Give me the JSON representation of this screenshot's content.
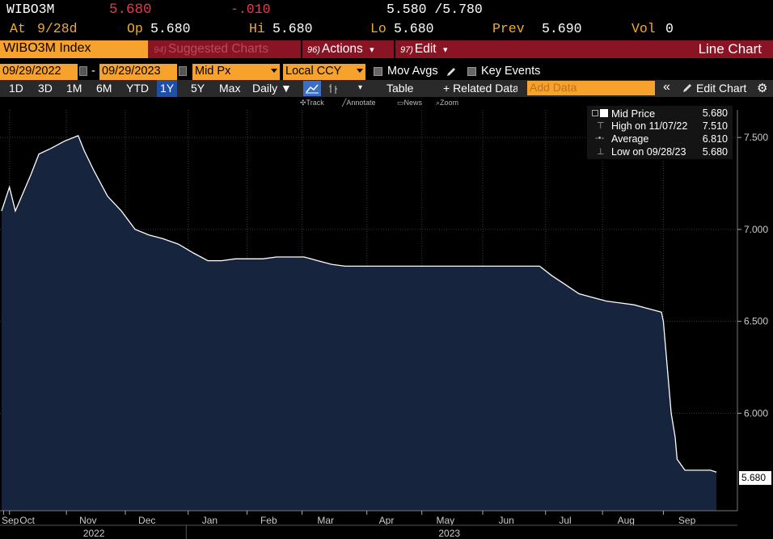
{
  "quote": {
    "ticker": "WIBO3M",
    "last": "5.680",
    "change": "-.010",
    "bid_ask": "5.580 /5.780",
    "at_label": "At",
    "at_value": "9/28d",
    "open_label": "Op",
    "open_value": "5.680",
    "high_label": "Hi",
    "high_value": "5.680",
    "low_label": "Lo",
    "low_value": "5.680",
    "prev_label": "Prev",
    "prev_value": "5.690",
    "vol_label": "Vol",
    "vol_value": "0"
  },
  "function_bar": {
    "security": "WIBO3M Index",
    "suggested_num": "94)",
    "suggested_label": "Suggested Charts",
    "actions_num": "96)",
    "actions_label": "Actions",
    "edit_num": "97)",
    "edit_label": "Edit",
    "dropdown_glyph": "▾",
    "title": "Line Chart"
  },
  "controls": {
    "start_date": "09/29/2022",
    "separator": "-",
    "end_date": "09/29/2023",
    "field": "Mid Px",
    "currency": "Local CCY",
    "mov_avgs": "Mov Avgs",
    "key_events": "Key Events"
  },
  "range_bar": {
    "ranges": [
      "1D",
      "3D",
      "1M",
      "6M",
      "YTD",
      "1Y",
      "5Y",
      "Max"
    ],
    "selected": "1Y",
    "frequency": "Daily ▼",
    "table": "Table",
    "related": "+ Related Data",
    "add_data_placeholder": "Add Data",
    "collapse": "«",
    "edit_chart": "Edit Chart",
    "gear": "⚙"
  },
  "chart_tools": {
    "track": "Track",
    "annotate": "Annotate",
    "news": "News",
    "zoom": "Zoom"
  },
  "legend": {
    "mid_price_label": "Mid Price",
    "mid_price_value": "5.680",
    "high_label": "High on 11/07/22",
    "high_value": "7.510",
    "average_label": "Average",
    "average_value": "6.810",
    "low_label": "Low on 09/28/23",
    "low_value": "5.680"
  },
  "last_value_tag": "5.680",
  "colors": {
    "accent_orange": "#f7a22d",
    "quote_red": "#e8384f",
    "bar_red": "#8a1424",
    "area_fill": "#16243e",
    "line": "#ffffff"
  },
  "chart_data": {
    "type": "area",
    "series": [
      {
        "name": "Mid Price",
        "x": [
          "2022-09-29",
          "2022-10-03",
          "2022-10-06",
          "2022-10-10",
          "2022-10-14",
          "2022-10-18",
          "2022-10-24",
          "2022-10-31",
          "2022-11-07",
          "2022-11-10",
          "2022-11-15",
          "2022-11-22",
          "2022-11-29",
          "2022-12-06",
          "2022-12-13",
          "2022-12-20",
          "2022-12-28",
          "2023-01-05",
          "2023-01-12",
          "2023-01-19",
          "2023-01-26",
          "2023-02-02",
          "2023-02-09",
          "2023-02-16",
          "2023-02-23",
          "2023-03-02",
          "2023-03-09",
          "2023-03-16",
          "2023-03-23",
          "2023-03-30",
          "2023-04-13",
          "2023-04-27",
          "2023-05-11",
          "2023-05-25",
          "2023-06-08",
          "2023-06-22",
          "2023-06-30",
          "2023-07-06",
          "2023-07-13",
          "2023-07-20",
          "2023-07-27",
          "2023-08-03",
          "2023-08-10",
          "2023-08-17",
          "2023-08-24",
          "2023-08-31",
          "2023-09-01",
          "2023-09-05",
          "2023-09-07",
          "2023-09-08",
          "2023-09-12",
          "2023-09-15",
          "2023-09-20",
          "2023-09-25",
          "2023-09-28"
        ],
        "y": [
          7.1,
          7.23,
          7.1,
          7.2,
          7.3,
          7.41,
          7.44,
          7.48,
          7.51,
          7.43,
          7.32,
          7.18,
          7.1,
          7.0,
          6.97,
          6.95,
          6.92,
          6.87,
          6.83,
          6.83,
          6.84,
          6.84,
          6.84,
          6.85,
          6.85,
          6.85,
          6.83,
          6.81,
          6.8,
          6.8,
          6.8,
          6.8,
          6.8,
          6.8,
          6.8,
          6.8,
          6.8,
          6.75,
          6.7,
          6.65,
          6.63,
          6.61,
          6.6,
          6.59,
          6.57,
          6.55,
          6.5,
          6.0,
          5.87,
          5.75,
          5.69,
          5.69,
          5.69,
          5.69,
          5.68
        ]
      }
    ],
    "y_ticks": [
      "7.500",
      "7.000",
      "6.500",
      "6.000"
    ],
    "ylim": [
      5.47,
      7.65
    ],
    "x_month_labels": [
      "Sep",
      "Oct",
      "Nov",
      "Dec",
      "Jan",
      "Feb",
      "Mar",
      "Apr",
      "May",
      "Jun",
      "Jul",
      "Aug",
      "Sep"
    ],
    "x_year_labels": [
      "2022",
      "2023"
    ],
    "grid": true,
    "legend_position": "top-right"
  }
}
